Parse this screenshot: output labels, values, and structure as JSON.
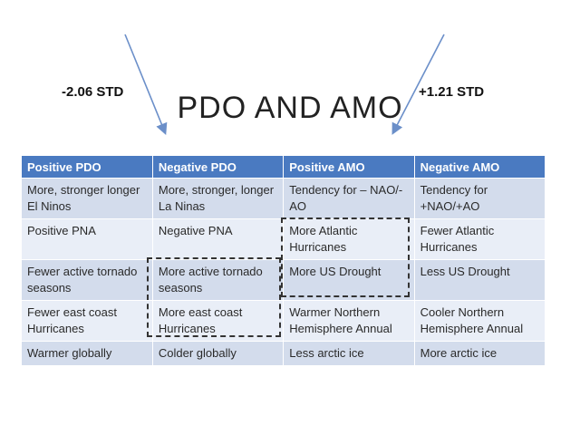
{
  "annotations": {
    "left_std": "-2.06 STD",
    "right_std": "+1.21 STD"
  },
  "title": "PDO AND AMO",
  "table": {
    "headers": [
      "Positive PDO",
      "Negative PDO",
      "Positive AMO",
      "Negative AMO"
    ],
    "rows": [
      [
        "More, stronger longer El Ninos",
        "More, stronger, longer La Ninas",
        "Tendency for – NAO/-AO",
        "Tendency for +NAO/+AO"
      ],
      [
        "Positive PNA",
        "Negative PNA",
        "More Atlantic Hurricanes",
        "Fewer Atlantic Hurricanes"
      ],
      [
        "Fewer active tornado seasons",
        "More active tornado seasons",
        "More US Drought",
        "Less US Drought"
      ],
      [
        "Fewer east coast Hurricanes",
        "More east coast Hurricanes",
        "Warmer Northern Hemisphere Annual",
        "Cooler Northern Hemisphere  Annual"
      ],
      [
        "Warmer globally",
        "Colder globally",
        "Less arctic ice",
        "More arctic ice"
      ]
    ]
  },
  "colors": {
    "header": "#4a7ac1",
    "row_dark": "#d3dcec",
    "row_light": "#e9eef7",
    "arrow": "#6b8fc9"
  }
}
